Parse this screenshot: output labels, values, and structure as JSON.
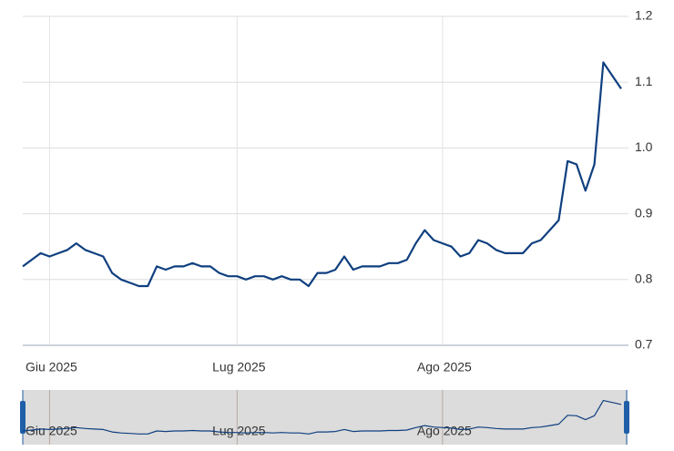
{
  "chart_data": {
    "type": "line",
    "categories": [
      null,
      null,
      null,
      "Giu 2025",
      null,
      null,
      null,
      null,
      null,
      null,
      null,
      null,
      null,
      null,
      null,
      null,
      null,
      null,
      null,
      null,
      null,
      null,
      null,
      null,
      "Lug 2025",
      null,
      null,
      null,
      null,
      null,
      null,
      null,
      null,
      null,
      null,
      null,
      null,
      null,
      null,
      null,
      null,
      null,
      null,
      null,
      null,
      null,
      null,
      "Ago 2025",
      null,
      null,
      null,
      null,
      null,
      null,
      null,
      null,
      null,
      null,
      null,
      null,
      null,
      null,
      null,
      null,
      null,
      null,
      null,
      null
    ],
    "series": [
      {
        "color": "#0f3f7f",
        "values": [
          0.82,
          0.83,
          0.84,
          0.835,
          0.84,
          0.845,
          0.855,
          0.845,
          0.84,
          0.835,
          0.81,
          0.8,
          0.795,
          0.79,
          0.79,
          0.82,
          0.815,
          0.82,
          0.82,
          0.825,
          0.82,
          0.82,
          0.81,
          0.805,
          0.805,
          0.8,
          0.805,
          0.805,
          0.8,
          0.805,
          0.8,
          0.8,
          0.79,
          0.81,
          0.81,
          0.815,
          0.835,
          0.815,
          0.82,
          0.82,
          0.82,
          0.825,
          0.825,
          0.83,
          0.855,
          0.875,
          0.86,
          0.855,
          0.85,
          0.835,
          0.84,
          0.86,
          0.855,
          0.845,
          0.84,
          0.84,
          0.84,
          0.855,
          0.86,
          0.875,
          0.89,
          0.98,
          0.975,
          0.935,
          0.975,
          1.13,
          1.11,
          1.09
        ]
      }
    ],
    "ylim": [
      0.7,
      1.2
    ],
    "yticks": [
      0.7,
      0.8,
      0.9,
      {
        "value": 1.0,
        "label": "1.0"
      },
      1.1,
      1.2
    ],
    "grid": true
  }
}
